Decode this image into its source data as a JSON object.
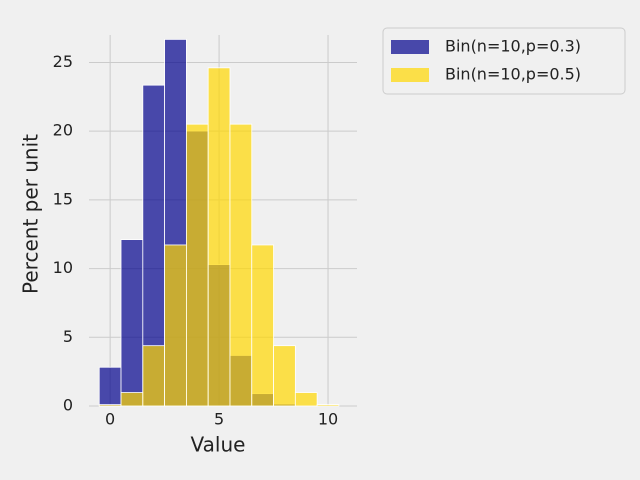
{
  "chart_data": {
    "type": "histogram",
    "xlabel": "Value",
    "ylabel": "Percent per unit",
    "bins": [
      -0.5,
      0.5,
      1.5,
      2.5,
      3.5,
      4.5,
      5.5,
      6.5,
      7.5,
      8.5,
      9.5,
      10.5
    ],
    "series": [
      {
        "name": "Bin(n=10,p=0.3)",
        "color": "#00008b",
        "values": [
          2.82,
          12.11,
          23.35,
          26.68,
          20.01,
          10.29,
          3.68,
          0.9,
          0.14,
          0.01,
          0.0
        ]
      },
      {
        "name": "Bin(n=10,p=0.5)",
        "color": "#ffd700",
        "values": [
          0.1,
          0.98,
          4.39,
          11.72,
          20.51,
          24.61,
          20.51,
          11.72,
          4.39,
          0.98,
          0.1
        ]
      }
    ],
    "xlim": [
      -0.97,
      11.33
    ],
    "xticks": [
      0,
      5,
      10
    ],
    "ylim": [
      0,
      27
    ],
    "yticks": [
      0,
      5,
      10,
      15,
      20,
      25
    ],
    "grid": true,
    "legend": "outside upper right"
  }
}
